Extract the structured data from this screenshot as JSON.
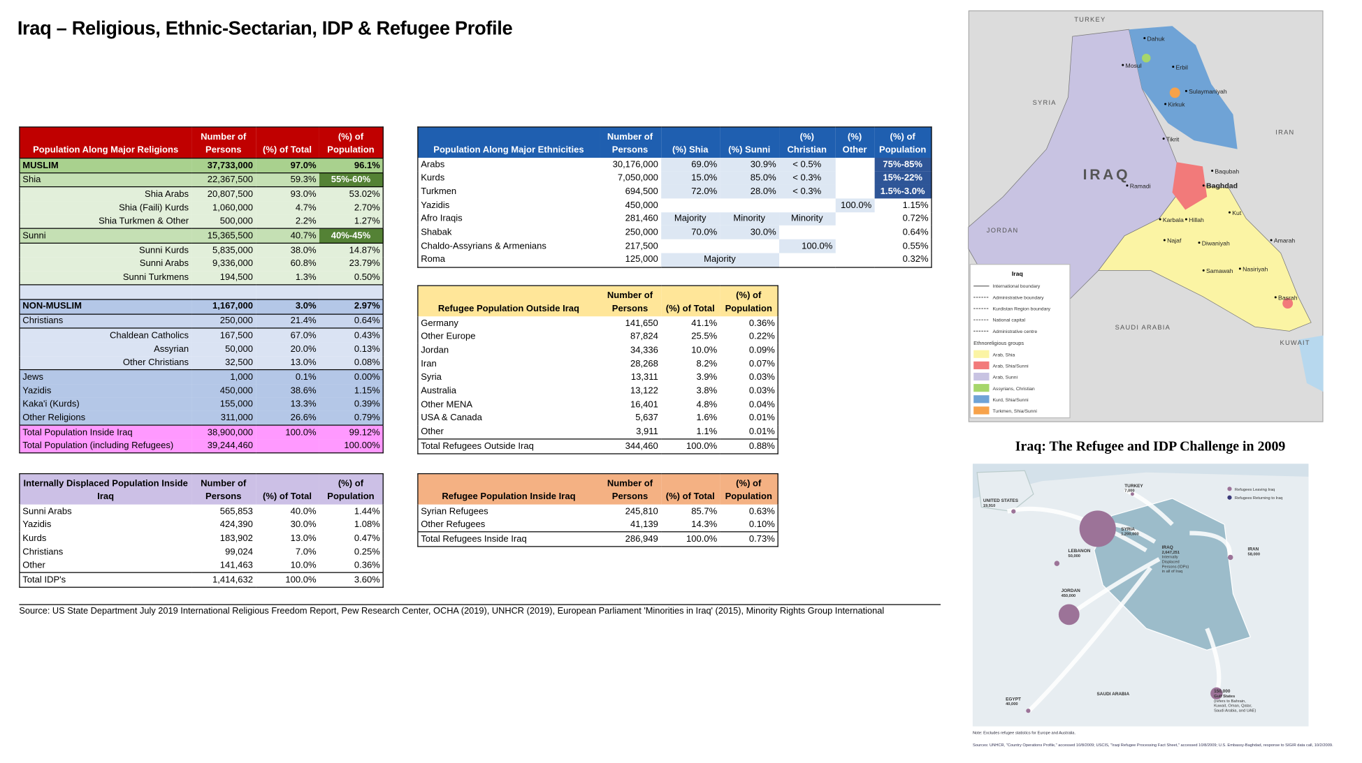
{
  "title": "Iraq – Religious, Ethnic-Sectarian, IDP & Refugee Profile",
  "tables": {
    "religions": {
      "header_fill": "#c00000",
      "header_color": "#ffffff",
      "columns": [
        "Population Along Major Religions",
        "Number of Persons",
        "(%) of Total",
        "(%) of Population"
      ],
      "accent_fill": "#548235",
      "rows": [
        {
          "cells": [
            "MUSLIM",
            "37,733,000",
            "97.0%",
            "96.1%"
          ],
          "fill": "#a9d18e",
          "bold": true
        },
        {
          "cells": [
            "Shia",
            "22,367,500",
            "59.3%",
            "55%-60%"
          ],
          "fill": "#c5e0b4",
          "accent": true
        },
        {
          "cells": [
            "Shia Arabs",
            "20,807,500",
            "93.0%",
            "53.02%"
          ],
          "fill": "#e2efda",
          "indent": true
        },
        {
          "cells": [
            "Shia (Faili) Kurds",
            "1,060,000",
            "4.7%",
            "2.70%"
          ],
          "fill": "#e2efda",
          "indent": true
        },
        {
          "cells": [
            "Shia Turkmen & Other",
            "500,000",
            "2.2%",
            "1.27%"
          ],
          "fill": "#e2efda",
          "indent": true
        },
        {
          "cells": [
            "Sunni",
            "15,365,500",
            "40.7%",
            "40%-45%"
          ],
          "fill": "#c5e0b4",
          "accent": true
        },
        {
          "cells": [
            "Sunni Kurds",
            "5,835,000",
            "38.0%",
            "14.87%"
          ],
          "fill": "#e2efda",
          "indent": true
        },
        {
          "cells": [
            "Sunni Arabs",
            "9,336,000",
            "60.8%",
            "23.79%"
          ],
          "fill": "#e2efda",
          "indent": true
        },
        {
          "cells": [
            "Sunni Turkmens",
            "194,500",
            "1.3%",
            "0.50%"
          ],
          "fill": "#e2efda",
          "indent": true
        },
        {
          "cells": [
            null,
            null,
            null,
            null
          ],
          "fill": "#dae3f3"
        },
        {
          "cells": [
            "NON-MUSLIM",
            "1,167,000",
            "3.0%",
            "2.97%"
          ],
          "fill": "#b4c7e7",
          "bold": true
        },
        {
          "cells": [
            "Christians",
            "250,000",
            "21.4%",
            "0.64%"
          ],
          "fill": "#c9d6ee"
        },
        {
          "cells": [
            "Chaldean Catholics",
            "167,500",
            "67.0%",
            "0.43%"
          ],
          "fill": "#dae3f3",
          "indent": true
        },
        {
          "cells": [
            "Assyrian",
            "50,000",
            "20.0%",
            "0.13%"
          ],
          "fill": "#dae3f3",
          "indent": true
        },
        {
          "cells": [
            "Other Christians",
            "32,500",
            "13.0%",
            "0.08%"
          ],
          "fill": "#dae3f3",
          "indent": true
        },
        {
          "cells": [
            "Jews",
            "1,000",
            "0.1%",
            "0.00%"
          ],
          "fill": "#b4c7e7"
        },
        {
          "cells": [
            "Yazidis",
            "450,000",
            "38.6%",
            "1.15%"
          ],
          "fill": "#b4c7e7"
        },
        {
          "cells": [
            "Kaka'i (Kurds)",
            "155,000",
            "13.3%",
            "0.39%"
          ],
          "fill": "#b4c7e7"
        },
        {
          "cells": [
            "Other Religions",
            "311,000",
            "26.6%",
            "0.79%"
          ],
          "fill": "#b4c7e7"
        },
        {
          "cells": [
            "Total Population Inside Iraq",
            "38,900,000",
            "100.0%",
            "99.12%"
          ],
          "fill": "#ff99ff"
        },
        {
          "cells": [
            "Total Population (including Refugees)",
            "39,244,460",
            null,
            "100.00%"
          ],
          "fill": "#ff99ff"
        }
      ]
    },
    "ethnicities": {
      "header_fill": "#1f5fb0",
      "header_color": "#ffffff",
      "columns": [
        "Population Along Major Ethnicities",
        "Number of Persons",
        "(%) Shia",
        "(%) Sunni",
        "(%) Christian",
        "(%) Other",
        "(%) of Population"
      ],
      "shade_fill": "#dde7f3",
      "accent_fill": "#2e5597",
      "rows": [
        {
          "cells": [
            "Arabs",
            "30,176,000",
            "69.0%",
            "30.9%",
            "< 0.5%",
            null,
            "75%-85%"
          ],
          "shade": [
            2,
            3,
            4
          ],
          "accent": true
        },
        {
          "cells": [
            "Kurds",
            "7,050,000",
            "15.0%",
            "85.0%",
            "< 0.3%",
            null,
            "15%-22%"
          ],
          "shade": [
            2,
            3,
            4
          ],
          "accent": true
        },
        {
          "cells": [
            "Turkmen",
            "694,500",
            "72.0%",
            "28.0%",
            "< 0.3%",
            null,
            "1.5%-3.0%"
          ],
          "shade": [
            2,
            3,
            4
          ],
          "accent": true
        },
        {
          "cells": [
            "Yazidis",
            "450,000",
            null,
            null,
            null,
            "100.0%",
            "1.15%"
          ],
          "shade": [
            5
          ]
        },
        {
          "cells": [
            "Afro Iraqis",
            "281,460",
            "Majority",
            "Minority",
            "Minority",
            null,
            "0.72%"
          ],
          "shade": [
            2,
            3,
            4
          ]
        },
        {
          "cells": [
            "Shabak",
            "250,000",
            "70.0%",
            "30.0%",
            null,
            null,
            "0.64%"
          ],
          "shade": [
            2,
            3
          ]
        },
        {
          "cells": [
            "Chaldo-Assyrians & Armenians",
            "217,500",
            null,
            null,
            "100.0%",
            null,
            "0.55%"
          ],
          "shade": [
            4
          ]
        },
        {
          "cells": [
            "Roma",
            "125,000",
            null,
            "Majority",
            null,
            null,
            "0.32%"
          ],
          "shade": [
            2,
            3
          ]
        }
      ]
    },
    "refugees_outside": {
      "header_fill": "#ffe699",
      "header_color": "#000000",
      "columns": [
        "Refugee Population Outside Iraq",
        "Number of Persons",
        "(%) of Total",
        "(%) of Population"
      ],
      "rows": [
        {
          "cells": [
            "Germany",
            "141,650",
            "41.1%",
            "0.36%"
          ]
        },
        {
          "cells": [
            "Other Europe",
            "87,824",
            "25.5%",
            "0.22%"
          ]
        },
        {
          "cells": [
            "Jordan",
            "34,336",
            "10.0%",
            "0.09%"
          ]
        },
        {
          "cells": [
            "Iran",
            "28,268",
            "8.2%",
            "0.07%"
          ]
        },
        {
          "cells": [
            "Syria",
            "13,311",
            "3.9%",
            "0.03%"
          ]
        },
        {
          "cells": [
            "Australia",
            "13,122",
            "3.8%",
            "0.03%"
          ]
        },
        {
          "cells": [
            "Other MENA",
            "16,401",
            "4.8%",
            "0.04%"
          ]
        },
        {
          "cells": [
            "USA & Canada",
            "5,637",
            "1.6%",
            "0.01%"
          ]
        },
        {
          "cells": [
            "Other",
            "3,911",
            "1.1%",
            "0.01%"
          ]
        },
        {
          "cells": [
            "Total Refugees Outside Iraq",
            "344,460",
            "100.0%",
            "0.88%"
          ],
          "total": true
        }
      ]
    },
    "idps": {
      "header_fill": "#ccc0e6",
      "header_color": "#000000",
      "columns": [
        "Internally Displaced Population Inside Iraq",
        "Number of Persons",
        "(%) of Total",
        "(%) of Population"
      ],
      "rows": [
        {
          "cells": [
            "Sunni Arabs",
            "565,853",
            "40.0%",
            "1.44%"
          ]
        },
        {
          "cells": [
            "Yazidis",
            "424,390",
            "30.0%",
            "1.08%"
          ]
        },
        {
          "cells": [
            "Kurds",
            "183,902",
            "13.0%",
            "0.47%"
          ]
        },
        {
          "cells": [
            "Christians",
            "99,024",
            "7.0%",
            "0.25%"
          ]
        },
        {
          "cells": [
            "Other",
            "141,463",
            "10.0%",
            "0.36%"
          ]
        },
        {
          "cells": [
            "Total IDP's",
            "1,414,632",
            "100.0%",
            "3.60%"
          ],
          "total": true
        }
      ]
    },
    "refugees_inside": {
      "header_fill": "#f4b183",
      "header_color": "#000000",
      "columns": [
        "Refugee Population Inside Iraq",
        "Number of Persons",
        "(%) of Total",
        "(%) of Population"
      ],
      "rows": [
        {
          "cells": [
            "Syrian Refugees",
            "245,810",
            "85.7%",
            "0.63%"
          ]
        },
        {
          "cells": [
            "Other Refugees",
            "41,139",
            "14.3%",
            "0.10%"
          ]
        },
        {
          "cells": [
            "Total Refugees Inside Iraq",
            "286,949",
            "100.0%",
            "0.73%"
          ],
          "total": true
        }
      ]
    }
  },
  "source": "Source: US State Department July 2019 International Religious Freedom Report, Pew Research Center, OCHA (2019), UNHCR (2019), European Parliament 'Minorities in Iraq' (2015), Minority Rights Group International",
  "map1": {
    "countries": [
      "TURKEY",
      "SYRIA",
      "IRAN",
      "IRAQ",
      "JORDAN",
      "SAUDI ARABIA",
      "KUWAIT"
    ],
    "cities": [
      "Dahuk",
      "Mosul",
      "Erbil",
      "Sulaymaniyah",
      "Kirkuk",
      "Tikrit",
      "Baqubah",
      "Baghdad",
      "Ramadi",
      "Karbala",
      "Hillah",
      "Kut",
      "Najaf",
      "Diwaniyah",
      "Amarah",
      "Samawah",
      "Nasiriyah",
      "Basrah"
    ],
    "legend": {
      "title": "Iraq",
      "lines": [
        "International boundary",
        "Administrative boundary",
        "Kurdistan Region boundary",
        "National capital",
        "Administrative centre"
      ],
      "groups_title": "Ethnoreligious groups",
      "groups": [
        {
          "name": "Arab, Shia",
          "color": "#fbf4a4"
        },
        {
          "name": "Arab, Shia/Sunni",
          "color": "#f27a7a"
        },
        {
          "name": "Arab, Sunni",
          "color": "#c8c3e2"
        },
        {
          "name": "Assyrians, Christian",
          "color": "#a6d66b"
        },
        {
          "name": "Kurd, Shia/Sunni",
          "color": "#6fa3d6"
        },
        {
          "name": "Turkmen, Shia/Sunni",
          "color": "#f7a24a"
        }
      ]
    }
  },
  "map2": {
    "title": "Iraq: The Refugee and IDP Challenge in 2009",
    "legend": [
      "Refugees Leaving Iraq",
      "Refugees Returning to Iraq"
    ],
    "labels": [
      [
        "TURKEY",
        "7,000"
      ],
      [
        "UNITED STATES",
        "19,910"
      ],
      [
        "SYRIA",
        "1,200,000"
      ],
      [
        "LEBANON",
        "50,000"
      ],
      [
        "IRAN",
        "58,000"
      ],
      [
        "JORDAN",
        "450,000"
      ],
      [
        "IRAQ",
        "2,647,251",
        "Internally",
        "Displaced",
        "Persons (IDPs)",
        "in all of Iraq"
      ],
      [
        "SAUDI ARABIA"
      ],
      [
        "EGYPT",
        "40,000"
      ],
      [
        "150,000",
        "Gulf States",
        "(refers to Bahrain,",
        "Kuwait, Oman, Qatar,",
        "Saudi Arabia, and UAE)"
      ]
    ],
    "note": "Note: Excludes refugee statistics for Europe and Australia.",
    "sources": "Sources: UNHCR, \"Country Operations Profile,\" accessed 10/8/2009; USCIS, \"Iraqi Refugee Processing Fact Sheet,\" accessed 10/8/2009; U.S. Embassy-Baghdad, response to SIGIR data call, 10/2/2009."
  }
}
